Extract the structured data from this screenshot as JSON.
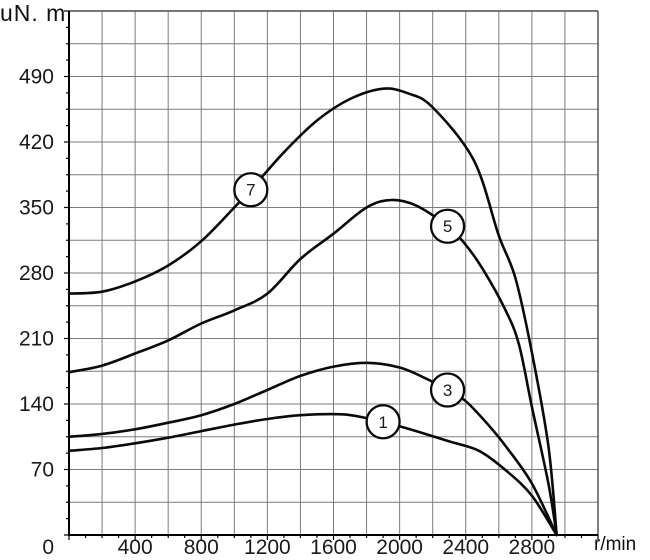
{
  "chart_data": {
    "type": "line",
    "title": "",
    "ylabel": "uN. m",
    "xlabel": "r/min",
    "origin_label": "0",
    "xlim": [
      0,
      3200
    ],
    "ylim": [
      0,
      560
    ],
    "x_ticks": [
      400,
      800,
      1200,
      1600,
      2000,
      2400,
      2800
    ],
    "y_ticks": [
      70,
      140,
      210,
      280,
      350,
      420,
      490
    ],
    "grid": true,
    "grid_step_x": 200,
    "grid_step_y": 35,
    "legend_position": "circled numbers on curves",
    "series": [
      {
        "name": "7",
        "marker": {
          "x": 1100,
          "y": 369
        },
        "points": [
          [
            0,
            258
          ],
          [
            200,
            260
          ],
          [
            400,
            271
          ],
          [
            600,
            288
          ],
          [
            800,
            314
          ],
          [
            1000,
            350
          ],
          [
            1100,
            369
          ],
          [
            1300,
            409
          ],
          [
            1500,
            443
          ],
          [
            1700,
            466
          ],
          [
            1900,
            477
          ],
          [
            2050,
            472
          ],
          [
            2200,
            457
          ],
          [
            2450,
            400
          ],
          [
            2600,
            320
          ],
          [
            2700,
            275
          ],
          [
            2800,
            195
          ],
          [
            2900,
            95
          ],
          [
            2950,
            0
          ]
        ]
      },
      {
        "name": "5",
        "marker": {
          "x": 2290,
          "y": 330
        },
        "points": [
          [
            0,
            174
          ],
          [
            200,
            181
          ],
          [
            400,
            194
          ],
          [
            600,
            208
          ],
          [
            800,
            226
          ],
          [
            1000,
            240
          ],
          [
            1200,
            258
          ],
          [
            1400,
            295
          ],
          [
            1600,
            322
          ],
          [
            1800,
            350
          ],
          [
            1950,
            358
          ],
          [
            2100,
            352
          ],
          [
            2290,
            330
          ],
          [
            2400,
            310
          ],
          [
            2500,
            285
          ],
          [
            2630,
            244
          ],
          [
            2720,
            205
          ],
          [
            2800,
            137
          ],
          [
            2900,
            55
          ],
          [
            2950,
            0
          ]
        ]
      },
      {
        "name": "3",
        "marker": {
          "x": 2290,
          "y": 155
        },
        "points": [
          [
            0,
            105
          ],
          [
            200,
            108
          ],
          [
            400,
            113
          ],
          [
            600,
            120
          ],
          [
            800,
            128
          ],
          [
            1000,
            140
          ],
          [
            1200,
            155
          ],
          [
            1400,
            170
          ],
          [
            1600,
            180
          ],
          [
            1800,
            184
          ],
          [
            2000,
            179
          ],
          [
            2150,
            168
          ],
          [
            2290,
            155
          ],
          [
            2400,
            143
          ],
          [
            2550,
            115
          ],
          [
            2650,
            93
          ],
          [
            2800,
            55
          ],
          [
            2950,
            0
          ]
        ]
      },
      {
        "name": "1",
        "marker": {
          "x": 1900,
          "y": 121
        },
        "points": [
          [
            0,
            90
          ],
          [
            200,
            93
          ],
          [
            400,
            98
          ],
          [
            600,
            104
          ],
          [
            800,
            111
          ],
          [
            1000,
            118
          ],
          [
            1200,
            124
          ],
          [
            1400,
            128
          ],
          [
            1650,
            129
          ],
          [
            1800,
            125
          ],
          [
            1900,
            121
          ],
          [
            2100,
            111
          ],
          [
            2300,
            100
          ],
          [
            2480,
            90
          ],
          [
            2650,
            68
          ],
          [
            2800,
            42
          ],
          [
            2950,
            0
          ]
        ]
      }
    ]
  },
  "colors": {
    "curve": "#0a0a0a",
    "grid": "#7d7d7d",
    "border": "#4a4a4a",
    "axis": "#000000",
    "text": "#1a1a1a",
    "marker_fill": "#ffffff"
  }
}
